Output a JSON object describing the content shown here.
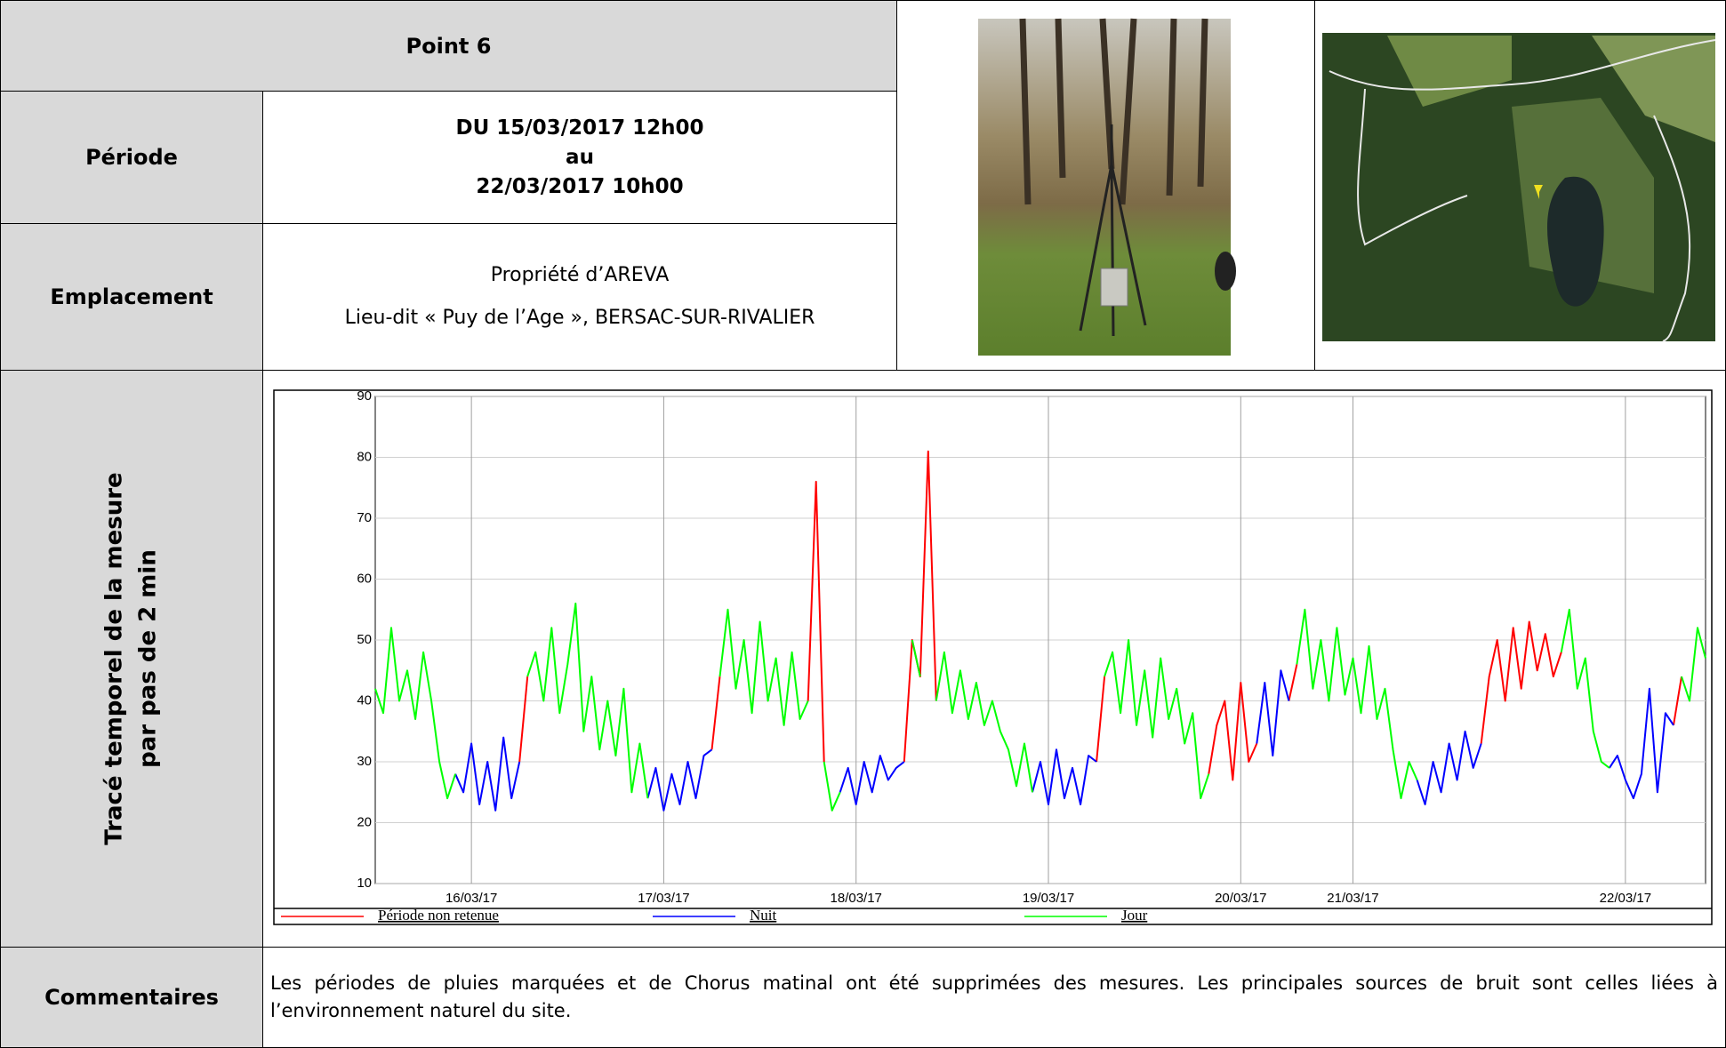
{
  "header": {
    "title": "Point 6"
  },
  "period": {
    "label": "Période",
    "lines": [
      "DU 15/03/2017 12h00",
      "au",
      "22/03/2017 10h00"
    ]
  },
  "location": {
    "label": "Emplacement",
    "lines": [
      "Propriété d’AREVA",
      "Lieu-dit « Puy de l’Age », BERSAC-SUR-RIVALIER"
    ]
  },
  "chart_section": {
    "label_lines": [
      "Tracé temporel de la mesure",
      "par pas de 2 min"
    ]
  },
  "comments": {
    "label": "Commentaires",
    "text": "Les périodes de pluies marquées et de Chorus matinal ont été supprimées des mesures. Les principales sources de bruit sont celles liées à l’environnement naturel du site."
  },
  "chart_data": {
    "type": "line",
    "categories": [
      null,
      null,
      null,
      null,
      null,
      null,
      null,
      null,
      null,
      null,
      null,
      null,
      "16/03/17",
      null,
      null,
      null,
      null,
      null,
      null,
      null,
      null,
      null,
      null,
      null,
      null,
      null,
      null,
      null,
      null,
      null,
      null,
      null,
      null,
      null,
      null,
      null,
      "17/03/17",
      null,
      null,
      null,
      null,
      null,
      null,
      null,
      null,
      null,
      null,
      null,
      null,
      null,
      null,
      null,
      null,
      null,
      null,
      null,
      null,
      null,
      null,
      null,
      "18/03/17",
      null,
      null,
      null,
      null,
      null,
      null,
      null,
      null,
      null,
      null,
      null,
      null,
      null,
      null,
      null,
      null,
      null,
      null,
      null,
      null,
      null,
      null,
      null,
      "19/03/17",
      null,
      null,
      null,
      null,
      null,
      null,
      null,
      null,
      null,
      null,
      null,
      null,
      null,
      null,
      null,
      null,
      null,
      null,
      null,
      null,
      null,
      null,
      null,
      "20/03/17",
      null,
      null,
      null,
      null,
      null,
      null,
      null,
      null,
      null,
      null,
      null,
      null,
      null,
      "21/03/17",
      null,
      null,
      null,
      null,
      null,
      null,
      null,
      null,
      null,
      null,
      null,
      null,
      null,
      null,
      null,
      null,
      null,
      null,
      null,
      null,
      null,
      null,
      null,
      null,
      null,
      null,
      null,
      null,
      null,
      null,
      null,
      null,
      null,
      "22/03/17",
      null,
      null,
      null,
      null,
      null,
      null,
      null,
      null,
      null,
      null
    ],
    "series": [
      {
        "name": "Période non retenue",
        "color": "#ff0000",
        "values": [
          null,
          null,
          null,
          null,
          null,
          null,
          null,
          null,
          null,
          null,
          null,
          null,
          null,
          null,
          null,
          null,
          null,
          null,
          30,
          44,
          null,
          null,
          null,
          null,
          null,
          null,
          null,
          null,
          null,
          null,
          null,
          null,
          null,
          null,
          null,
          null,
          null,
          null,
          null,
          null,
          null,
          null,
          32,
          44,
          null,
          null,
          null,
          null,
          null,
          null,
          null,
          null,
          null,
          null,
          40,
          76,
          30,
          null,
          null,
          null,
          null,
          null,
          null,
          null,
          null,
          null,
          30,
          50,
          44,
          81,
          40,
          null,
          null,
          null,
          null,
          null,
          null,
          null,
          null,
          null,
          null,
          null,
          null,
          null,
          null,
          null,
          null,
          null,
          null,
          null,
          30,
          44,
          null,
          null,
          null,
          null,
          null,
          null,
          null,
          null,
          null,
          null,
          null,
          null,
          28,
          36,
          40,
          27,
          43,
          30,
          33,
          null,
          null,
          null,
          40,
          46,
          null,
          null,
          null,
          null,
          null,
          null,
          null,
          null,
          null,
          null,
          null,
          null,
          null,
          null,
          null,
          null,
          null,
          null,
          null,
          null,
          null,
          null,
          33,
          44,
          50,
          40,
          52,
          42,
          53,
          45,
          51,
          44,
          48,
          null,
          null,
          null,
          null,
          null,
          null,
          null,
          null,
          null,
          null,
          null,
          null,
          null,
          36,
          44,
          null,
          null,
          null
        ]
      },
      {
        "name": "Nuit",
        "color": "#0000ff",
        "values": [
          null,
          null,
          null,
          null,
          null,
          null,
          null,
          null,
          null,
          null,
          28,
          25,
          33,
          23,
          30,
          22,
          34,
          24,
          30,
          null,
          null,
          null,
          null,
          null,
          null,
          null,
          null,
          null,
          null,
          null,
          null,
          null,
          null,
          null,
          24,
          29,
          22,
          28,
          23,
          30,
          24,
          31,
          32,
          null,
          null,
          null,
          null,
          null,
          null,
          null,
          null,
          null,
          null,
          null,
          null,
          null,
          null,
          null,
          25,
          29,
          23,
          30,
          25,
          31,
          27,
          29,
          30,
          null,
          null,
          null,
          null,
          null,
          null,
          null,
          null,
          null,
          null,
          null,
          null,
          null,
          null,
          null,
          25,
          30,
          23,
          32,
          24,
          29,
          23,
          31,
          30,
          null,
          null,
          null,
          null,
          null,
          null,
          null,
          null,
          null,
          null,
          null,
          null,
          null,
          null,
          null,
          null,
          null,
          null,
          null,
          33,
          43,
          31,
          45,
          40,
          null,
          null,
          null,
          null,
          null,
          null,
          null,
          null,
          null,
          null,
          null,
          null,
          null,
          null,
          null,
          27,
          23,
          30,
          25,
          33,
          27,
          35,
          29,
          33,
          null,
          null,
          null,
          null,
          null,
          null,
          null,
          null,
          null,
          null,
          null,
          null,
          null,
          null,
          null,
          29,
          31,
          27,
          24,
          28,
          42,
          25,
          38,
          36,
          null,
          null,
          null,
          null
        ]
      },
      {
        "name": "Jour",
        "color": "#00ff00",
        "values": [
          42,
          38,
          52,
          40,
          45,
          37,
          48,
          40,
          30,
          24,
          28,
          null,
          null,
          null,
          null,
          null,
          null,
          null,
          null,
          44,
          48,
          40,
          52,
          38,
          46,
          56,
          35,
          44,
          32,
          40,
          31,
          42,
          25,
          33,
          24,
          null,
          null,
          null,
          null,
          null,
          null,
          null,
          null,
          44,
          55,
          42,
          50,
          38,
          53,
          40,
          47,
          36,
          48,
          37,
          40,
          null,
          30,
          22,
          25,
          null,
          null,
          null,
          null,
          null,
          null,
          null,
          null,
          50,
          44,
          null,
          40,
          48,
          38,
          45,
          37,
          43,
          36,
          40,
          35,
          32,
          26,
          33,
          25,
          null,
          null,
          null,
          null,
          null,
          null,
          null,
          null,
          44,
          48,
          38,
          50,
          36,
          45,
          34,
          47,
          37,
          42,
          33,
          38,
          24,
          28,
          null,
          null,
          null,
          null,
          null,
          null,
          null,
          null,
          null,
          null,
          46,
          55,
          42,
          50,
          40,
          52,
          41,
          47,
          38,
          49,
          37,
          42,
          32,
          24,
          30,
          27,
          null,
          null,
          null,
          null,
          null,
          null,
          null,
          null,
          null,
          null,
          null,
          null,
          null,
          null,
          null,
          null,
          null,
          48,
          55,
          42,
          47,
          35,
          30,
          29,
          null,
          null,
          null,
          null,
          null,
          null,
          null,
          null,
          44,
          40,
          52,
          47
        ]
      }
    ],
    "ylim": [
      10,
      90
    ],
    "yticks": [
      10,
      20,
      30,
      40,
      50,
      60,
      70,
      80,
      90
    ],
    "grid": true,
    "legend": "bottom"
  }
}
